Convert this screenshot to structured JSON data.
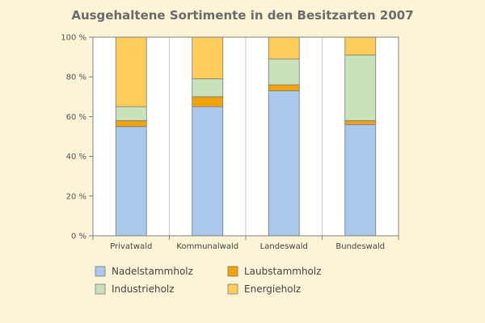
{
  "chart_data": {
    "type": "bar",
    "stacked": true,
    "title": "Ausgehaltene Sortimente in den Besitzarten 2007",
    "xlabel": "",
    "ylabel": "",
    "ylim": [
      0,
      100
    ],
    "yticks": [
      0,
      20,
      40,
      60,
      80,
      100
    ],
    "ytick_labels": [
      "0 %",
      "20 %",
      "40 %",
      "60 %",
      "80 %",
      "100 %"
    ],
    "categories": [
      "Privatwald",
      "Kommunalwald",
      "Landeswald",
      "Bundeswald"
    ],
    "series": [
      {
        "name": "Nadelstammholz",
        "color": "#a8c8ec",
        "values": [
          55,
          65,
          73,
          56
        ]
      },
      {
        "name": "Laubstammholz",
        "color": "#f2a20a",
        "values": [
          3,
          5,
          3,
          2
        ]
      },
      {
        "name": "Industrieholz",
        "color": "#c8e2bc",
        "values": [
          7,
          9,
          13,
          33
        ]
      },
      {
        "name": "Energieholz",
        "color": "#fccd58",
        "values": [
          35,
          21,
          11,
          9
        ]
      }
    ],
    "grid": "vertical",
    "legend_position": "bottom"
  }
}
